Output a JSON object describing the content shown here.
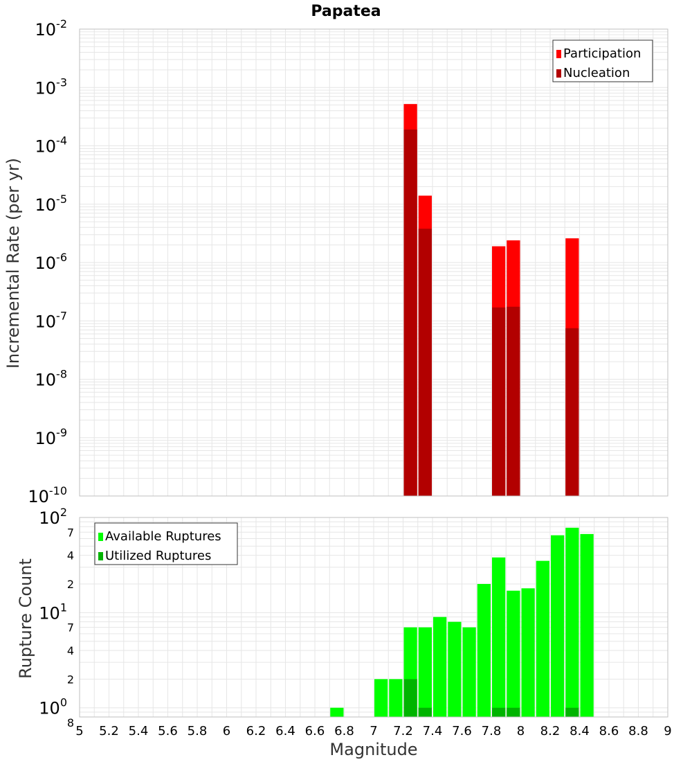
{
  "colors": {
    "participation": "#ff0000",
    "nucleation": "#b20000",
    "available": "#00ff00",
    "utilized": "#00b400",
    "grid": "#e6e6e6",
    "axis_border": "#bfbfbf"
  },
  "chart_data": [
    {
      "type": "bar",
      "title": "Papatea",
      "xlabel": "",
      "ylabel": "Incremental Rate (per yr)",
      "yscale": "log",
      "ylim": [
        1e-10,
        0.01
      ],
      "xlim": [
        5,
        9
      ],
      "y_tick_labels": [
        {
          "base": "10",
          "exp": "-10",
          "value": 1e-10
        },
        {
          "base": "10",
          "exp": "-9",
          "value": 1e-09
        },
        {
          "base": "10",
          "exp": "-8",
          "value": 1e-08
        },
        {
          "base": "10",
          "exp": "-7",
          "value": 1e-07
        },
        {
          "base": "10",
          "exp": "-6",
          "value": 1e-06
        },
        {
          "base": "10",
          "exp": "-5",
          "value": 1e-05
        },
        {
          "base": "10",
          "exp": "-4",
          "value": 0.0001
        },
        {
          "base": "10",
          "exp": "-3",
          "value": 0.001
        },
        {
          "base": "10",
          "exp": "-2",
          "value": 0.01
        }
      ],
      "grid": true,
      "legend_position": "top-right",
      "bar_width": 0.1,
      "series": [
        {
          "name": "Participation",
          "x": [
            7.25,
            7.35,
            7.85,
            7.95,
            8.35
          ],
          "values": [
            0.00052,
            1.4e-05,
            1.9e-06,
            2.4e-06,
            2.6e-06
          ]
        },
        {
          "name": "Nucleation",
          "x": [
            7.25,
            7.35,
            7.85,
            7.95,
            8.35
          ],
          "values": [
            0.00019,
            3.8e-06,
            1.7e-07,
            1.75e-07,
            7.5e-08
          ]
        }
      ]
    },
    {
      "type": "bar",
      "title": "",
      "xlabel": "Magnitude",
      "ylabel": "Rupture Count",
      "yscale": "log",
      "ylim": [
        0.8,
        100
      ],
      "xlim": [
        5,
        9
      ],
      "x_ticks": [
        "5",
        "5.2",
        "5.4",
        "5.6",
        "5.8",
        "6",
        "6.2",
        "6.4",
        "6.6",
        "6.8",
        "7",
        "7.2",
        "7.4",
        "7.6",
        "7.8",
        "8",
        "8.2",
        "8.4",
        "8.6",
        "8.8",
        "9"
      ],
      "y_tick_labels": [
        {
          "base": "10",
          "exp": "0",
          "value": 1
        },
        {
          "base": "10",
          "exp": "1",
          "value": 10
        },
        {
          "base": "10",
          "exp": "2",
          "value": 100
        }
      ],
      "y_minor_tick_labels": [
        {
          "label": "8",
          "value": 0.8
        },
        {
          "label": "2",
          "value": 2
        },
        {
          "label": "4",
          "value": 4
        },
        {
          "label": "7",
          "value": 7
        },
        {
          "label": "2",
          "value": 20
        },
        {
          "label": "4",
          "value": 40
        },
        {
          "label": "7",
          "value": 70
        }
      ],
      "grid": true,
      "legend_position": "top-left",
      "bar_width": 0.1,
      "series": [
        {
          "name": "Available Ruptures",
          "x": [
            6.75,
            7.05,
            7.15,
            7.25,
            7.35,
            7.45,
            7.55,
            7.65,
            7.75,
            7.85,
            7.95,
            8.05,
            8.15,
            8.25,
            8.35,
            8.45
          ],
          "values": [
            1,
            2,
            2,
            7,
            7,
            9,
            8,
            7,
            20,
            38,
            17,
            18,
            35,
            65,
            78,
            67
          ]
        },
        {
          "name": "Utilized Ruptures",
          "x": [
            7.25,
            7.35,
            7.85,
            7.95,
            8.35
          ],
          "values": [
            2,
            1,
            1,
            1,
            1
          ]
        }
      ]
    }
  ]
}
